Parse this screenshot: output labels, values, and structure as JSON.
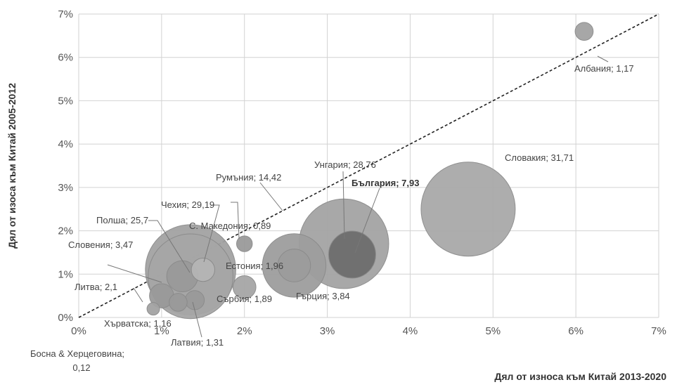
{
  "chart_data": {
    "type": "bubble",
    "xlabel": "Дял от износа към Китай 2013-2020",
    "ylabel": "Дял от изоса към Китай 2005-2012",
    "xlim": [
      0,
      7
    ],
    "ylim": [
      0,
      7
    ],
    "x_ticks": [
      "0%",
      "1%",
      "2%",
      "3%",
      "4%",
      "5%",
      "6%",
      "7%"
    ],
    "y_ticks": [
      "0%",
      "1%",
      "2%",
      "3%",
      "4%",
      "5%",
      "6%",
      "7%"
    ],
    "grid": true,
    "reference_line": "y = x (dashed)",
    "points": [
      {
        "label": "Словакия; 31,71",
        "x": 4.7,
        "y": 2.5,
        "size": 31.71,
        "color": "#a9a9a9"
      },
      {
        "label": "Полша; 25,7",
        "x": 1.35,
        "y": 0.95,
        "size": 25.7,
        "color": "#a6a6a6"
      },
      {
        "label": "Сърбия; 1,89",
        "x": 2.0,
        "y": 0.7,
        "size": 1.89,
        "color": "#a6a6a6"
      },
      {
        "label": "Унгария; 28,76",
        "x": 3.2,
        "y": 1.7,
        "size": 28.76,
        "color": "#a4a4a4"
      },
      {
        "label": "Чехия; 29,19",
        "x": 1.35,
        "y": 1.1,
        "size": 29.19,
        "color": "#a3a3a3"
      },
      {
        "label": "Румъния; 14,42",
        "x": 2.6,
        "y": 1.2,
        "size": 14.42,
        "color": "#9e9e9e"
      },
      {
        "label": "Гърция; 3,84",
        "x": 2.6,
        "y": 1.2,
        "size": 3.84,
        "color": "#9c9c9c"
      },
      {
        "label": "България; 7,93",
        "x": 3.3,
        "y": 1.45,
        "size": 7.93,
        "color": "#6e6e6e",
        "bold": true
      },
      {
        "label": "Естония; 1,96",
        "x": 1.5,
        "y": 1.1,
        "size": 1.96,
        "color": "#b5b5b5"
      },
      {
        "label": "Словения; 3,47",
        "x": 1.25,
        "y": 0.95,
        "size": 3.47,
        "color": "#9a9a9a"
      },
      {
        "label": "Латвия; 1,31",
        "x": 1.4,
        "y": 0.4,
        "size": 1.31,
        "color": "#9a9a9a"
      },
      {
        "label": "Литва; 2,1",
        "x": 1.0,
        "y": 0.5,
        "size": 2.1,
        "color": "#9a9a9a"
      },
      {
        "label": "Хърватска; 1,16",
        "x": 1.2,
        "y": 0.35,
        "size": 1.16,
        "color": "#9a9a9a"
      },
      {
        "label": "С. Македония; 0,89",
        "x": 2.0,
        "y": 1.7,
        "size": 0.89,
        "color": "#9a9a9a"
      },
      {
        "label": "Албания; 1,17",
        "x": 6.1,
        "y": 6.6,
        "size": 1.17,
        "color": "#a3a3a3"
      },
      {
        "label": "Босна & Херцеговина; 0,12",
        "x": 0.9,
        "y": 0.2,
        "size": 0.12,
        "color": "#a3a3a3"
      }
    ]
  }
}
